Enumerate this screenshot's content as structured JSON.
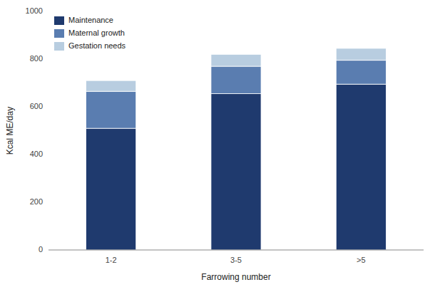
{
  "chart_data": {
    "type": "bar",
    "stacked": true,
    "categories": [
      "1-2",
      "3-5",
      ">5"
    ],
    "series": [
      {
        "name": "Maintenance",
        "color": "#1f3a6e",
        "values": [
          510,
          655,
          695
        ]
      },
      {
        "name": "Maternal growth",
        "color": "#5a7db0",
        "values": [
          155,
          115,
          100
        ]
      },
      {
        "name": "Gestation needs",
        "color": "#b8cde0",
        "values": [
          45,
          50,
          50
        ]
      }
    ],
    "xlabel": "Farrowing number",
    "ylabel": "Kcal ME/day",
    "ylim": [
      0,
      1000
    ],
    "yticks": [
      0,
      200,
      400,
      600,
      800,
      1000
    ],
    "grid": false,
    "legend": "upper left"
  }
}
